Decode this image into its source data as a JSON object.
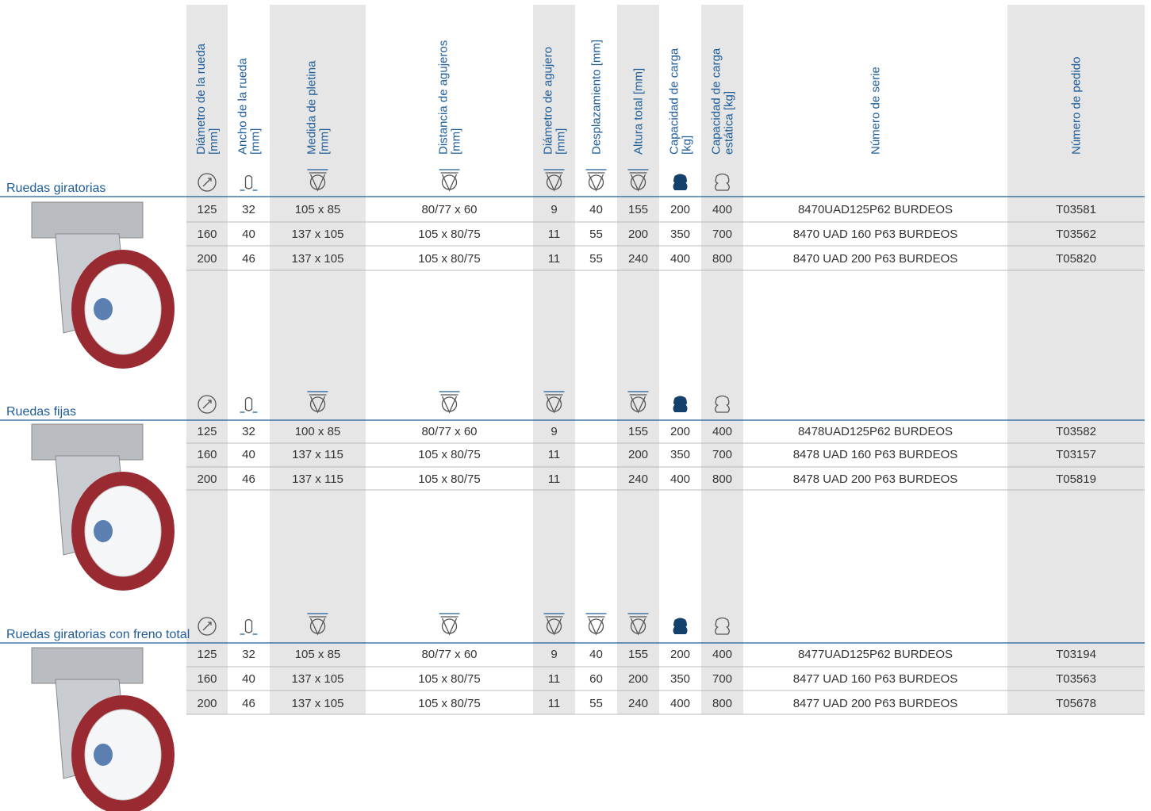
{
  "headers": [
    [
      "Diámetro de la rueda",
      "[mm]"
    ],
    [
      "Ancho de la rueda",
      "[mm]"
    ],
    [
      "Medida de pletina",
      "[mm]"
    ],
    [
      "Distancia de agujeros",
      "[mm]"
    ],
    [
      "Diámetro de agujero",
      "[mm]"
    ],
    [
      "Desplazamiento [mm]"
    ],
    [
      "Altura total [mm]"
    ],
    [
      "Capacidad de carga",
      "[kg]"
    ],
    [
      "Capacidad de carga",
      "estática [kg]"
    ],
    [
      "Número de serie"
    ],
    [
      "Número de pedido"
    ]
  ],
  "sections": [
    {
      "title": "Ruedas giratorias",
      "rows": [
        [
          125,
          32,
          "105 x 85",
          "80/77 x 60",
          9,
          40,
          155,
          200,
          400,
          "8470UAD125P62 BURDEOS",
          "T03581"
        ],
        [
          160,
          40,
          "137 x 105",
          "105 x 80/75",
          11,
          55,
          200,
          350,
          700,
          "8470 UAD 160 P63 BURDEOS",
          "T03562"
        ],
        [
          200,
          46,
          "137 x 105",
          "105 x 80/75",
          11,
          55,
          240,
          400,
          800,
          "8470 UAD 200 P63 BURDEOS",
          "T05820"
        ]
      ]
    },
    {
      "title": "Ruedas fijas",
      "rows": [
        [
          125,
          32,
          "100 x 85",
          "80/77 x 60",
          9,
          null,
          155,
          200,
          400,
          "8478UAD125P62 BURDEOS",
          "T03582"
        ],
        [
          160,
          40,
          "137 x 115",
          "105 x 80/75",
          11,
          null,
          200,
          350,
          700,
          "8478 UAD 160 P63 BURDEOS",
          "T03157"
        ],
        [
          200,
          46,
          "137 x 115",
          "105 x 80/75",
          11,
          null,
          240,
          400,
          800,
          "8478 UAD 200 P63 BURDEOS",
          "T05819"
        ]
      ]
    },
    {
      "title": "Ruedas giratorias con freno total",
      "rows": [
        [
          125,
          32,
          "105 x 85",
          "80/77 x 60",
          9,
          40,
          155,
          200,
          400,
          "8477UAD125P62 BURDEOS",
          "T03194"
        ],
        [
          160,
          40,
          "137 x 105",
          "105 x 80/75",
          11,
          60,
          200,
          350,
          700,
          "8477 UAD 160 P63 BURDEOS",
          "T03563"
        ],
        [
          200,
          46,
          "137 x 105",
          "105 x 80/75",
          11,
          55,
          240,
          400,
          800,
          "8477 UAD 200 P63 BURDEOS",
          "T05678"
        ]
      ]
    }
  ]
}
